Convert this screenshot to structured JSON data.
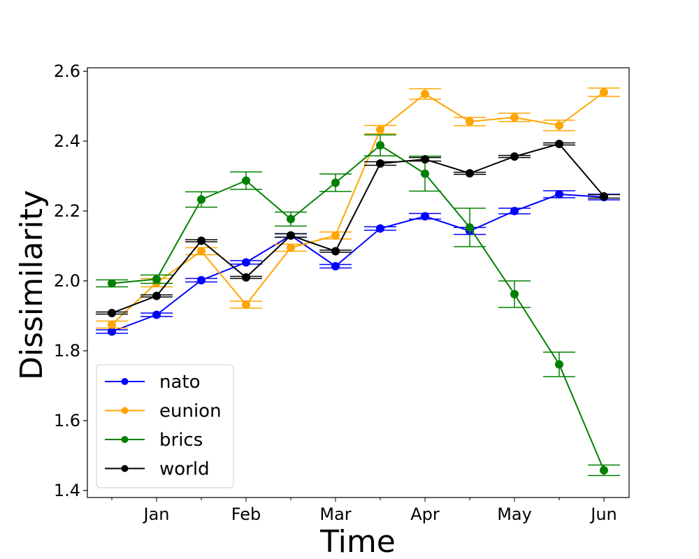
{
  "chart_data": {
    "type": "line",
    "title": "",
    "xlabel": "Time",
    "ylabel": "Dissimilarity",
    "x_tick_labels": [
      "Jan",
      "Feb",
      "Mar",
      "Apr",
      "May",
      "Jun"
    ],
    "y_ticks": [
      "1.4",
      "1.6",
      "1.8",
      "2.0",
      "2.2",
      "2.4",
      "2.6"
    ],
    "ylim": [
      1.38,
      2.61
    ],
    "grid": false,
    "legend_placement": "lower-left",
    "points_per_series": 12,
    "series": [
      {
        "name": "nato",
        "color": "#0000ff",
        "values": [
          1.855,
          1.903,
          2.002,
          2.053,
          2.13,
          2.042,
          2.15,
          2.185,
          2.143,
          2.2,
          2.248,
          2.24
        ],
        "err": [
          0.005,
          0.005,
          0.005,
          0.005,
          0.005,
          0.005,
          0.005,
          0.008,
          0.01,
          0.008,
          0.01,
          0.008
        ]
      },
      {
        "name": "eunion",
        "color": "#ffa500",
        "values": [
          1.875,
          1.995,
          2.085,
          1.932,
          2.095,
          2.13,
          2.433,
          2.535,
          2.456,
          2.468,
          2.445,
          2.54
        ],
        "err": [
          0.01,
          0.012,
          0.01,
          0.01,
          0.01,
          0.01,
          0.012,
          0.015,
          0.012,
          0.012,
          0.015,
          0.012
        ]
      },
      {
        "name": "brics",
        "color": "#008000",
        "values": [
          1.993,
          2.005,
          2.233,
          2.287,
          2.177,
          2.281,
          2.388,
          2.307,
          2.153,
          1.962,
          1.761,
          1.458
        ],
        "err": [
          0.01,
          0.012,
          0.022,
          0.025,
          0.02,
          0.025,
          0.03,
          0.05,
          0.055,
          0.038,
          0.035,
          0.015
        ]
      },
      {
        "name": "world",
        "color": "#000000",
        "values": [
          1.908,
          1.957,
          2.115,
          2.01,
          2.13,
          2.085,
          2.336,
          2.348,
          2.308,
          2.356,
          2.392,
          2.242
        ],
        "err": [
          0.003,
          0.003,
          0.003,
          0.003,
          0.005,
          0.003,
          0.005,
          0.005,
          0.003,
          0.003,
          0.003,
          0.005
        ]
      }
    ]
  }
}
